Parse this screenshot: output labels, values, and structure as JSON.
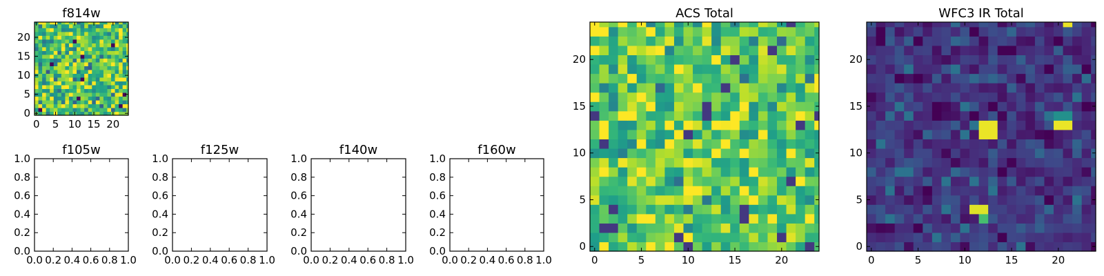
{
  "chart_data": [
    {
      "type": "heatmap",
      "title": "f814w",
      "grid_size": [
        25,
        25
      ],
      "colormap": "viridis",
      "value_range": [
        0,
        1
      ],
      "x_ticks": [
        "0",
        "5",
        "10",
        "15",
        "20"
      ],
      "y_ticks": [
        "0",
        "5",
        "10",
        "15",
        "20"
      ],
      "note": "random-noise image, values skewed high (mostly green/yellow)",
      "mean": 0.72,
      "spread": 0.22,
      "seed": 11,
      "hotspots": []
    },
    {
      "type": "empty",
      "title": "f105w",
      "x_ticks": [
        "0.0",
        "0.2",
        "0.4",
        "0.6",
        "0.8",
        "1.0"
      ],
      "y_ticks": [
        "0.0",
        "0.2",
        "0.4",
        "0.6",
        "0.8",
        "1.0"
      ]
    },
    {
      "type": "empty",
      "title": "f125w",
      "x_ticks": [
        "0.0",
        "0.2",
        "0.4",
        "0.6",
        "0.8",
        "1.0"
      ],
      "y_ticks": [
        "0.0",
        "0.2",
        "0.4",
        "0.6",
        "0.8",
        "1.0"
      ]
    },
    {
      "type": "empty",
      "title": "f140w",
      "x_ticks": [
        "0.0",
        "0.2",
        "0.4",
        "0.6",
        "0.8",
        "1.0"
      ],
      "y_ticks": [
        "0.0",
        "0.2",
        "0.4",
        "0.6",
        "0.8",
        "1.0"
      ]
    },
    {
      "type": "empty",
      "title": "f160w",
      "x_ticks": [
        "0.0",
        "0.2",
        "0.4",
        "0.6",
        "0.8",
        "1.0"
      ],
      "y_ticks": [
        "0.0",
        "0.2",
        "0.4",
        "0.6",
        "0.8",
        "1.0"
      ]
    },
    {
      "type": "heatmap",
      "title": "ACS Total",
      "grid_size": [
        25,
        25
      ],
      "colormap": "viridis",
      "value_range": [
        0,
        1
      ],
      "x_ticks": [
        "0",
        "5",
        "10",
        "15",
        "20"
      ],
      "y_ticks": [
        "0",
        "5",
        "10",
        "15",
        "20"
      ],
      "note": "random-noise image, values skewed high (mostly green)",
      "mean": 0.74,
      "spread": 0.18,
      "seed": 23,
      "hotspots": []
    },
    {
      "type": "heatmap",
      "title": "WFC3 IR Total",
      "grid_size": [
        25,
        25
      ],
      "colormap": "viridis",
      "value_range": [
        0,
        1
      ],
      "x_ticks": [
        "0",
        "5",
        "10",
        "15",
        "20"
      ],
      "y_ticks": [
        "0",
        "5",
        "10",
        "15",
        "20"
      ],
      "note": "low-level noise (dark purple/blue) with a few bright sources",
      "mean": 0.16,
      "spread": 0.1,
      "seed": 37,
      "hotspots": [
        {
          "col": 12,
          "row": 12,
          "value": 0.97
        },
        {
          "col": 13,
          "row": 12,
          "value": 0.97
        },
        {
          "col": 12,
          "row": 13,
          "value": 0.97
        },
        {
          "col": 13,
          "row": 13,
          "value": 0.97
        },
        {
          "col": 20,
          "row": 13,
          "value": 0.97
        },
        {
          "col": 21,
          "row": 13,
          "value": 0.97
        },
        {
          "col": 20,
          "row": 14,
          "value": 0.5
        },
        {
          "col": 21,
          "row": 14,
          "value": 0.5
        },
        {
          "col": 11,
          "row": 4,
          "value": 0.95
        },
        {
          "col": 12,
          "row": 4,
          "value": 0.95
        },
        {
          "col": 12,
          "row": 3,
          "value": 0.7
        },
        {
          "col": 21,
          "row": 24,
          "value": 0.97
        }
      ]
    }
  ]
}
